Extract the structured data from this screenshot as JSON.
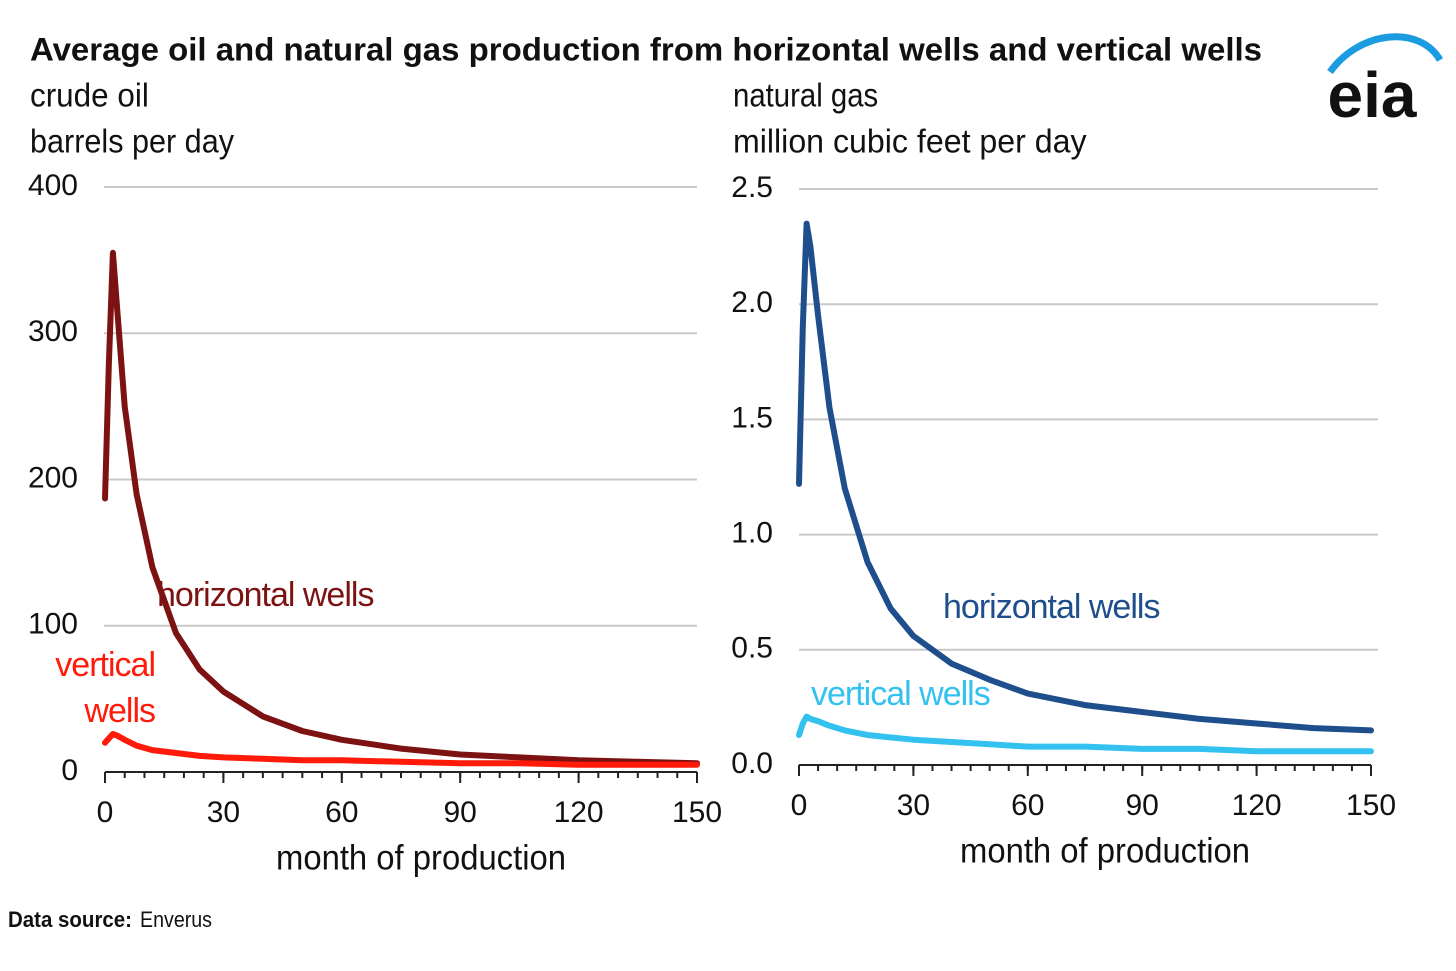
{
  "title": "Average oil and natural gas production from horizontal wells and vertical wells",
  "logo": "eia",
  "source_label": "Data source:",
  "source": "Enverus",
  "chart_data": [
    {
      "type": "line",
      "title": "crude oil",
      "subtitle": "barrels per day",
      "xlabel": "month of production",
      "x": [
        0,
        1,
        2,
        3,
        5,
        8,
        12,
        18,
        24,
        30,
        40,
        50,
        60,
        75,
        90,
        105,
        120,
        135,
        150
      ],
      "xlim": [
        0,
        150
      ],
      "xticks": [
        0,
        30,
        60,
        90,
        120,
        150
      ],
      "ylim": [
        0,
        400
      ],
      "yticks": [
        0,
        100,
        200,
        300,
        400
      ],
      "grid": true,
      "series": [
        {
          "name": "horizontal wells",
          "color": "#7d1212",
          "values": [
            187,
            280,
            355,
            320,
            250,
            190,
            140,
            95,
            70,
            55,
            38,
            28,
            22,
            16,
            12,
            10,
            8,
            7,
            6
          ]
        },
        {
          "name": "vertical wells",
          "color": "#ff1a0a",
          "values": [
            20,
            23,
            26,
            25,
            22,
            18,
            15,
            13,
            11,
            10,
            9,
            8,
            8,
            7,
            6,
            6,
            5,
            5,
            5
          ]
        }
      ]
    },
    {
      "type": "line",
      "title": "natural gas",
      "subtitle": "million cubic feet per day",
      "xlabel": "month of production",
      "x": [
        0,
        1,
        2,
        3,
        5,
        8,
        12,
        18,
        24,
        30,
        40,
        50,
        60,
        75,
        90,
        105,
        120,
        135,
        150
      ],
      "xlim": [
        0,
        150
      ],
      "xticks": [
        0,
        30,
        60,
        90,
        120,
        150
      ],
      "ylim": [
        0,
        2.5
      ],
      "yticks": [
        {
          "value": 0,
          "label": "0.0"
        },
        0.5,
        {
          "value": 1,
          "label": "1.0"
        },
        1.5,
        {
          "value": 2,
          "label": "2.0"
        },
        2.5
      ],
      "grid": true,
      "series": [
        {
          "name": "horizontal wells",
          "color": "#1f4e8c",
          "values": [
            1.22,
            1.9,
            2.35,
            2.25,
            1.95,
            1.55,
            1.2,
            0.88,
            0.68,
            0.56,
            0.44,
            0.37,
            0.31,
            0.26,
            0.23,
            0.2,
            0.18,
            0.16,
            0.15
          ]
        },
        {
          "name": "vertical wells",
          "color": "#33c1f0",
          "values": [
            0.13,
            0.18,
            0.21,
            0.2,
            0.19,
            0.17,
            0.15,
            0.13,
            0.12,
            0.11,
            0.1,
            0.09,
            0.08,
            0.08,
            0.07,
            0.07,
            0.06,
            0.06,
            0.06
          ]
        }
      ]
    }
  ]
}
